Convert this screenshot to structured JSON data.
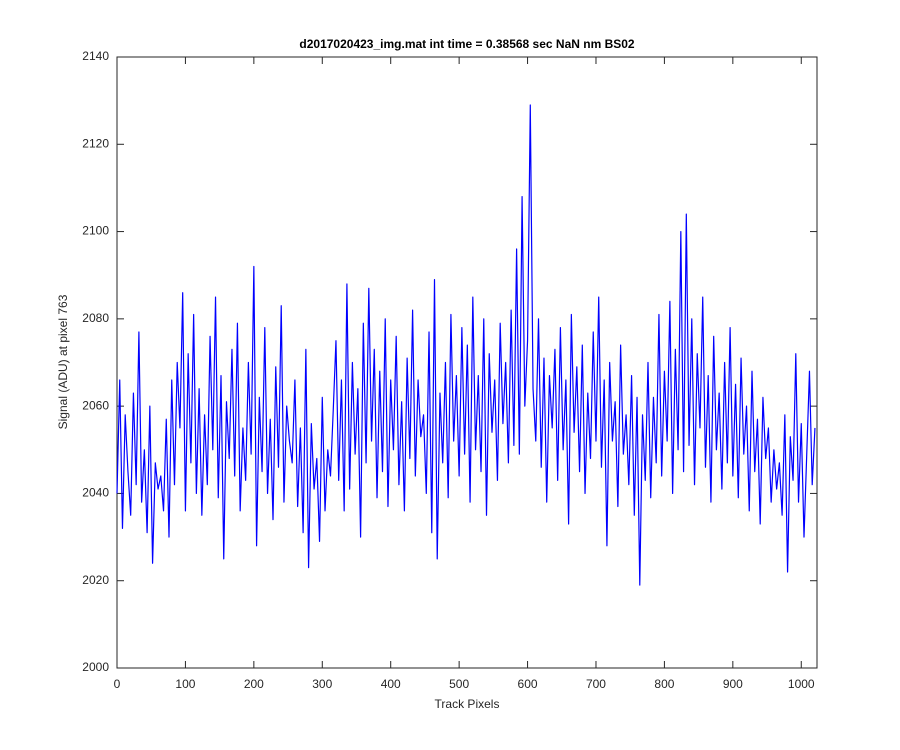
{
  "chart_data": {
    "type": "line",
    "title": "d2017020423_img.mat int time = 0.38568 sec  NaN nm BS02",
    "xlabel": "Track Pixels",
    "ylabel": "Signal (ADU) at pixel 763",
    "xlim": [
      0,
      1023
    ],
    "ylim": [
      2000,
      2140
    ],
    "xticks": [
      0,
      100,
      200,
      300,
      400,
      500,
      600,
      700,
      800,
      900,
      1000
    ],
    "yticks": [
      2000,
      2020,
      2040,
      2060,
      2080,
      2100,
      2120,
      2140
    ],
    "grid": false,
    "x": [
      0,
      4,
      8,
      12,
      16,
      20,
      24,
      28,
      32,
      36,
      40,
      44,
      48,
      52,
      56,
      60,
      64,
      68,
      72,
      76,
      80,
      84,
      88,
      92,
      96,
      100,
      104,
      108,
      112,
      116,
      120,
      124,
      128,
      132,
      136,
      140,
      144,
      148,
      152,
      156,
      160,
      164,
      168,
      172,
      176,
      180,
      184,
      188,
      192,
      196,
      200,
      204,
      208,
      212,
      216,
      220,
      224,
      228,
      232,
      236,
      240,
      244,
      248,
      252,
      256,
      260,
      264,
      268,
      272,
      276,
      280,
      284,
      288,
      292,
      296,
      300,
      304,
      308,
      312,
      316,
      320,
      324,
      328,
      332,
      336,
      340,
      344,
      348,
      352,
      356,
      360,
      364,
      368,
      372,
      376,
      380,
      384,
      388,
      392,
      396,
      400,
      404,
      408,
      412,
      416,
      420,
      424,
      428,
      432,
      436,
      440,
      444,
      448,
      452,
      456,
      460,
      464,
      468,
      472,
      476,
      480,
      484,
      488,
      492,
      496,
      500,
      504,
      508,
      512,
      516,
      520,
      524,
      528,
      532,
      536,
      540,
      544,
      548,
      552,
      556,
      560,
      564,
      568,
      572,
      576,
      580,
      584,
      588,
      592,
      596,
      600,
      604,
      608,
      612,
      616,
      620,
      624,
      628,
      632,
      636,
      640,
      644,
      648,
      652,
      656,
      660,
      664,
      668,
      672,
      676,
      680,
      684,
      688,
      692,
      696,
      700,
      704,
      708,
      712,
      716,
      720,
      724,
      728,
      732,
      736,
      740,
      744,
      748,
      752,
      756,
      760,
      764,
      768,
      772,
      776,
      780,
      784,
      788,
      792,
      796,
      800,
      804,
      808,
      812,
      816,
      820,
      824,
      828,
      832,
      836,
      840,
      844,
      848,
      852,
      856,
      860,
      864,
      868,
      872,
      876,
      880,
      884,
      888,
      892,
      896,
      900,
      904,
      908,
      912,
      916,
      920,
      924,
      928,
      932,
      936,
      940,
      944,
      948,
      952,
      956,
      960,
      964,
      968,
      972,
      976,
      980,
      984,
      988,
      992,
      996,
      1000,
      1004,
      1008,
      1012,
      1016,
      1020
    ],
    "series": [
      {
        "color": "#0000ff",
        "values": [
          2040,
          2066,
          2032,
          2058,
          2045,
          2035,
          2063,
          2042,
          2077,
          2038,
          2050,
          2031,
          2060,
          2024,
          2047,
          2041,
          2044,
          2036,
          2057,
          2030,
          2066,
          2042,
          2070,
          2055,
          2086,
          2036,
          2072,
          2047,
          2081,
          2040,
          2064,
          2035,
          2058,
          2042,
          2076,
          2050,
          2085,
          2039,
          2067,
          2025,
          2061,
          2048,
          2073,
          2044,
          2079,
          2036,
          2055,
          2043,
          2070,
          2049,
          2092,
          2028,
          2062,
          2045,
          2078,
          2040,
          2057,
          2034,
          2069,
          2046,
          2083,
          2038,
          2060,
          2052,
          2047,
          2066,
          2037,
          2055,
          2031,
          2073,
          2023,
          2056,
          2041,
          2048,
          2029,
          2062,
          2036,
          2050,
          2044,
          2059,
          2075,
          2043,
          2066,
          2036,
          2088,
          2041,
          2070,
          2049,
          2064,
          2030,
          2079,
          2047,
          2087,
          2052,
          2073,
          2039,
          2068,
          2045,
          2080,
          2037,
          2066,
          2050,
          2076,
          2042,
          2061,
          2036,
          2071,
          2048,
          2082,
          2044,
          2066,
          2053,
          2058,
          2040,
          2077,
          2031,
          2089,
          2025,
          2063,
          2047,
          2070,
          2039,
          2081,
          2052,
          2067,
          2044,
          2078,
          2049,
          2074,
          2038,
          2085,
          2050,
          2067,
          2045,
          2080,
          2035,
          2072,
          2054,
          2066,
          2043,
          2079,
          2056,
          2070,
          2047,
          2082,
          2051,
          2096,
          2049,
          2108,
          2060,
          2075,
          2129,
          2064,
          2052,
          2080,
          2046,
          2071,
          2038,
          2067,
          2055,
          2073,
          2043,
          2078,
          2050,
          2066,
          2033,
          2081,
          2054,
          2069,
          2045,
          2074,
          2040,
          2063,
          2048,
          2077,
          2052,
          2085,
          2046,
          2066,
          2028,
          2070,
          2052,
          2061,
          2037,
          2074,
          2049,
          2058,
          2042,
          2067,
          2035,
          2062,
          2019,
          2058,
          2043,
          2070,
          2039,
          2062,
          2047,
          2081,
          2044,
          2068,
          2052,
          2084,
          2040,
          2073,
          2050,
          2100,
          2045,
          2104,
          2051,
          2080,
          2042,
          2072,
          2055,
          2085,
          2046,
          2067,
          2038,
          2076,
          2050,
          2063,
          2041,
          2070,
          2047,
          2078,
          2044,
          2065,
          2039,
          2071,
          2049,
          2060,
          2036,
          2068,
          2045,
          2057,
          2033,
          2062,
          2048,
          2055,
          2038,
          2050,
          2041,
          2047,
          2035,
          2058,
          2022,
          2053,
          2043,
          2072,
          2038,
          2056,
          2030,
          2049,
          2068,
          2042,
          2055
        ]
      }
    ]
  }
}
